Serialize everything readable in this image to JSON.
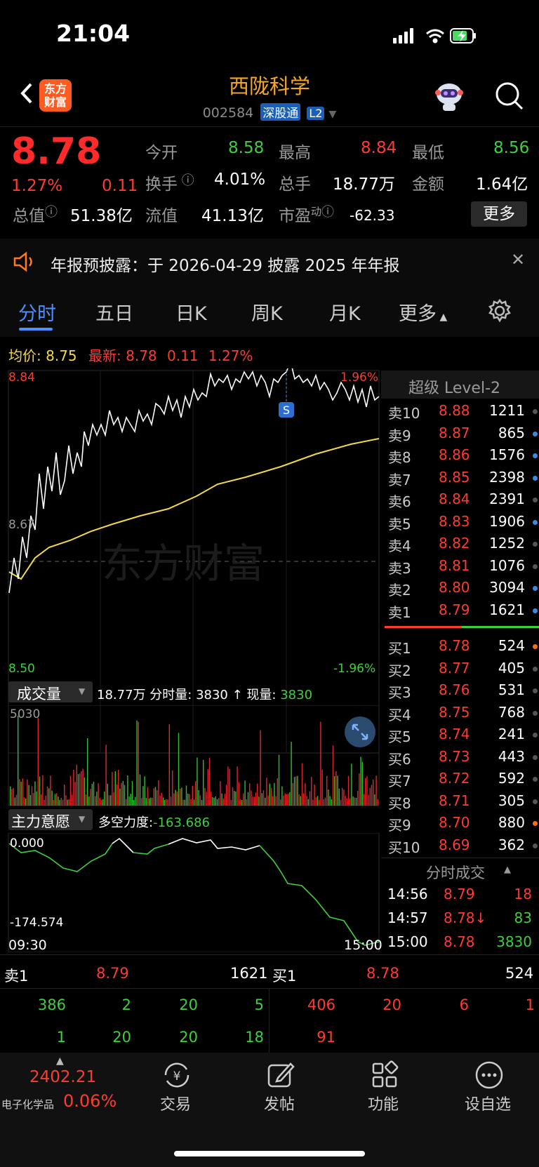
{
  "status": {
    "time": "21:04"
  },
  "header": {
    "logo_text_1": "东方",
    "logo_text_2": "财富",
    "title": "西陇科学",
    "code": "002584",
    "tag1": "深股通",
    "tag2": "L2"
  },
  "quote": {
    "price": "8.78",
    "pct": "1.27%",
    "chg": "0.11",
    "open_label": "今开",
    "open": "8.58",
    "high_label": "最高",
    "high": "8.84",
    "low_label": "最低",
    "low": "8.56",
    "turnover_label": "换手",
    "turnover": "4.01%",
    "volume_label": "总手",
    "volume": "18.77万",
    "amount_label": "金额",
    "amount": "1.64亿",
    "mcap_label": "总值",
    "mcap": "51.38亿",
    "float_label": "流值",
    "float": "41.13亿",
    "pe_label": "市盈",
    "pe_sup": "动",
    "pe": "-62.33",
    "more": "更多"
  },
  "notice": {
    "text": "年报预披露：于 2026-04-29 披露 2025 年年报"
  },
  "tabs": [
    {
      "label": "分时"
    },
    {
      "label": "五日"
    },
    {
      "label": "日K"
    },
    {
      "label": "周K"
    },
    {
      "label": "月K"
    },
    {
      "label": "更多"
    }
  ],
  "chart_info": {
    "avg_label": "均价:",
    "avg": "8.75",
    "last_label": "最新:",
    "last": "8.78",
    "last_chg": "0.11",
    "last_pct": "1.27%",
    "y_top": "8.84",
    "y_mid": "8.67",
    "y_bot": "8.50",
    "pct_top": "1.96%",
    "pct_bot": "-1.96%",
    "marker": "S",
    "watermark": "东方财富"
  },
  "volume_info": {
    "label": "成交量",
    "total": "18.77万",
    "period_label": "分时量:",
    "period": "3830",
    "now_label": "现量:",
    "now": "3830",
    "ymax": "5030"
  },
  "force_info": {
    "label": "主力意愿",
    "strength_label": "多空力度:",
    "strength": "-163.686",
    "ytop": "0.000",
    "ybot": "-174.574",
    "t_start": "09:30",
    "t_end": "15:00"
  },
  "orderbook": {
    "title": "超级 Level-2",
    "sells": [
      {
        "label": "卖10",
        "price": "8.88",
        "vol": "1211"
      },
      {
        "label": "卖9",
        "price": "8.87",
        "vol": "865"
      },
      {
        "label": "卖8",
        "price": "8.86",
        "vol": "1576"
      },
      {
        "label": "卖7",
        "price": "8.85",
        "vol": "2398"
      },
      {
        "label": "卖6",
        "price": "8.84",
        "vol": "2391"
      },
      {
        "label": "卖5",
        "price": "8.83",
        "vol": "1906"
      },
      {
        "label": "卖4",
        "price": "8.82",
        "vol": "1252"
      },
      {
        "label": "卖3",
        "price": "8.81",
        "vol": "1076"
      },
      {
        "label": "卖2",
        "price": "8.80",
        "vol": "3094"
      },
      {
        "label": "卖1",
        "price": "8.79",
        "vol": "1621"
      }
    ],
    "buys": [
      {
        "label": "买1",
        "price": "8.78",
        "vol": "524"
      },
      {
        "label": "买2",
        "price": "8.77",
        "vol": "405"
      },
      {
        "label": "买3",
        "price": "8.76",
        "vol": "531"
      },
      {
        "label": "买4",
        "price": "8.75",
        "vol": "768"
      },
      {
        "label": "买5",
        "price": "8.74",
        "vol": "241"
      },
      {
        "label": "买6",
        "price": "8.73",
        "vol": "443"
      },
      {
        "label": "买7",
        "price": "8.72",
        "vol": "592"
      },
      {
        "label": "买8",
        "price": "8.71",
        "vol": "305"
      },
      {
        "label": "买9",
        "price": "8.70",
        "vol": "880"
      },
      {
        "label": "买10",
        "price": "8.69",
        "vol": "362"
      }
    ],
    "ticks_title": "分时成交",
    "ticks": [
      {
        "time": "14:56",
        "price": "8.79",
        "vol": "18"
      },
      {
        "time": "14:57",
        "price": "8.78↓",
        "vol": "83"
      },
      {
        "time": "15:00",
        "price": "8.78",
        "vol": "3830"
      }
    ]
  },
  "queue": {
    "sell_label": "卖1",
    "sell_price": "8.79",
    "sell_vol": "1621",
    "buy_label": "买1",
    "buy_price": "8.78",
    "buy_vol": "524",
    "sell_orders_r1": [
      "386",
      "2",
      "20",
      "5"
    ],
    "sell_orders_r2": [
      "1",
      "20",
      "20",
      "18"
    ],
    "buy_orders_r1": [
      "406",
      "20",
      "6",
      "1"
    ],
    "buy_orders_r2": [
      "91"
    ]
  },
  "nav": {
    "index_value": "2402.21",
    "index_name": "电子化学品",
    "index_pct": "0.06%",
    "items": [
      {
        "label": "交易"
      },
      {
        "label": "发帖"
      },
      {
        "label": "功能"
      },
      {
        "label": "设自选"
      }
    ]
  }
}
